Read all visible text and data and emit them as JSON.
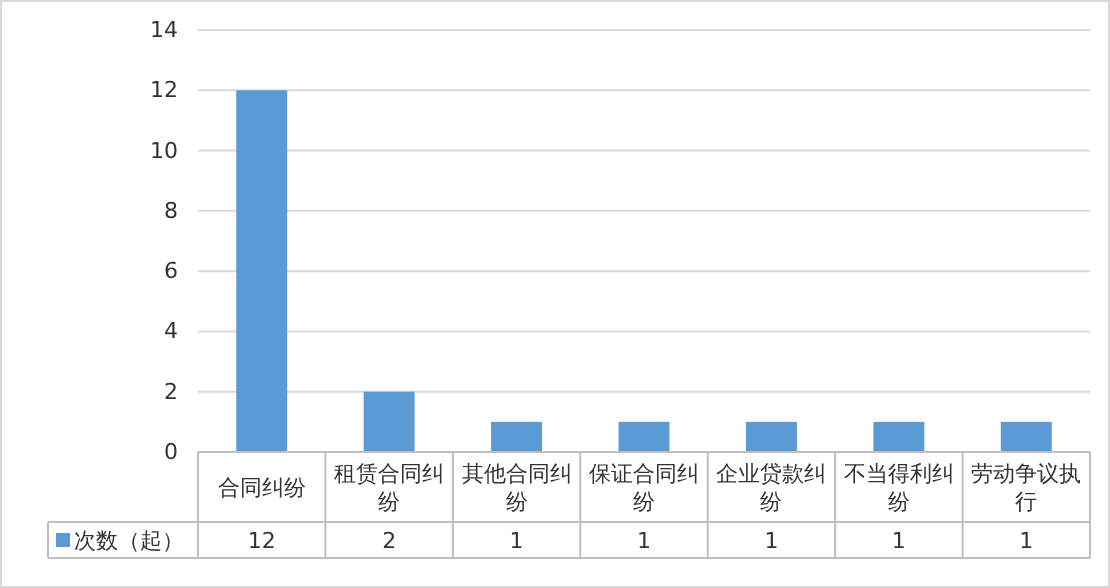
{
  "chart_data": {
    "type": "bar",
    "categories": [
      "合同纠纷",
      "租赁合同纠纷",
      "其他合同纠纷",
      "保证合同纠纷",
      "企业贷款纠纷",
      "不当得利纠纷",
      "劳动争议执行"
    ],
    "series": [
      {
        "name": "次数（起）",
        "color": "#5b9bd5",
        "values": [
          12,
          2,
          1,
          1,
          1,
          1,
          1
        ]
      }
    ],
    "ylim": [
      0,
      14
    ],
    "yticks": [
      0,
      2,
      4,
      6,
      8,
      10,
      12,
      14
    ],
    "grid": "y",
    "legend": "bottom",
    "data_labels": true
  }
}
